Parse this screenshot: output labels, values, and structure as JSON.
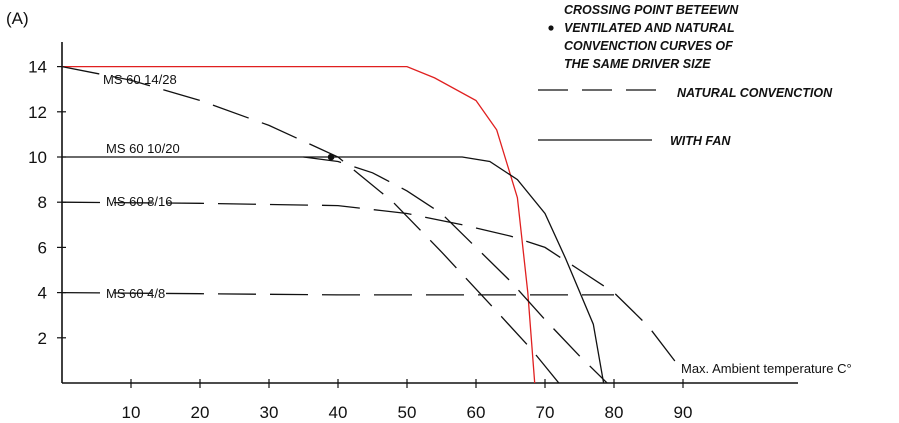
{
  "chart_data": {
    "type": "line",
    "ylabel": "(A)",
    "xlabel": "Max. Ambient temperature C°",
    "xlim": [
      0,
      100
    ],
    "ylim": [
      0,
      15
    ],
    "x_ticks": [
      10,
      20,
      30,
      40,
      50,
      60,
      70,
      80,
      90
    ],
    "y_ticks": [
      2,
      4,
      6,
      8,
      10,
      12,
      14
    ],
    "legend": {
      "crossing": "CROSSING POINT BETEEWN VENTILATED AND NATURAL CONVENCTION CURVES OF THE SAME DRIVER SIZE",
      "crossing_lines": [
        "CROSSING POINT BETEEWN",
        "VENTILATED  AND NATURAL",
        "CONVENCTION CURVES OF",
        "THE SAME DRIVER SIZE"
      ],
      "natural": "NATURAL  CONVENCTION",
      "fan": "WITH FAN"
    },
    "series": [
      {
        "name": "MS 60 14/28",
        "style": "fan",
        "color": "#e02020",
        "points": [
          [
            0,
            14
          ],
          [
            50,
            14
          ],
          [
            54,
            13.5
          ],
          [
            60,
            12.5
          ],
          [
            63,
            11.2
          ],
          [
            66,
            8.2
          ],
          [
            67.5,
            4
          ],
          [
            68.5,
            0
          ]
        ]
      },
      {
        "name": "MS 60 10/20",
        "style": "fan",
        "color": "#111111",
        "points": [
          [
            0,
            10
          ],
          [
            58,
            10
          ],
          [
            62,
            9.8
          ],
          [
            66,
            9
          ],
          [
            70,
            7.5
          ],
          [
            73,
            5.5
          ],
          [
            77,
            2.6
          ],
          [
            78.5,
            0
          ]
        ]
      },
      {
        "name": "",
        "style": "natural",
        "color": "#111111",
        "points": [
          [
            0,
            14
          ],
          [
            10,
            13.4
          ],
          [
            20,
            12.5
          ],
          [
            30,
            11.4
          ],
          [
            40,
            10
          ],
          [
            48,
            8
          ],
          [
            55,
            5.8
          ],
          [
            62,
            3.5
          ],
          [
            68,
            1.5
          ],
          [
            72,
            0
          ]
        ]
      },
      {
        "name": "",
        "style": "natural",
        "color": "#111111",
        "points": [
          [
            35,
            10
          ],
          [
            40,
            9.8
          ],
          [
            45,
            9.3
          ],
          [
            50,
            8.5
          ],
          [
            55,
            7.5
          ],
          [
            60,
            6
          ],
          [
            65,
            4.5
          ],
          [
            70,
            2.8
          ],
          [
            75,
            1.2
          ],
          [
            79,
            0
          ]
        ]
      },
      {
        "name": "MS 60  8/16",
        "style": "natural",
        "color": "#111111",
        "points": [
          [
            0,
            8
          ],
          [
            20,
            7.95
          ],
          [
            40,
            7.85
          ],
          [
            50,
            7.5
          ],
          [
            58,
            7
          ],
          [
            65,
            6.5
          ],
          [
            70,
            6
          ],
          [
            75,
            5
          ],
          [
            80,
            4
          ],
          [
            85,
            2.5
          ],
          [
            90,
            0.5
          ]
        ]
      },
      {
        "name": "MS 60  4/8",
        "style": "natural",
        "color": "#111111",
        "points": [
          [
            0,
            4
          ],
          [
            20,
            3.95
          ],
          [
            40,
            3.9
          ],
          [
            60,
            3.9
          ],
          [
            70,
            3.9
          ],
          [
            80,
            3.9
          ]
        ]
      }
    ],
    "crossing_points": [
      [
        39,
        10
      ]
    ]
  }
}
